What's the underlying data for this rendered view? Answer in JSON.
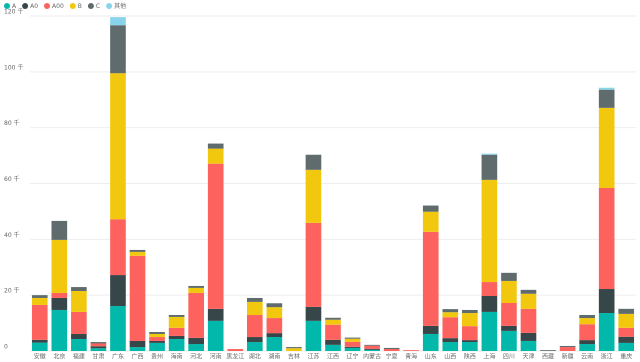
{
  "chart_data": {
    "type": "stacked_bar",
    "categories": [
      "安徽",
      "北京",
      "福建",
      "甘肃",
      "广东",
      "广西",
      "贵州",
      "海南",
      "河北",
      "河南",
      "黑龙江",
      "湖北",
      "湖南",
      "吉林",
      "江苏",
      "江西",
      "辽宁",
      "内蒙古",
      "宁夏",
      "青海",
      "山东",
      "山西",
      "陕西",
      "上海",
      "四川",
      "天津",
      "西藏",
      "新疆",
      "云南",
      "浙江",
      "重庆"
    ],
    "series": [
      {
        "name": "A",
        "color": "#01b8aa",
        "values": [
          3,
          14.7,
          4.3,
          1,
          16.1,
          1.4,
          2.9,
          4.3,
          2.5,
          10.8,
          0,
          3.2,
          5,
          0,
          10.8,
          2.2,
          1.1,
          0.4,
          0,
          0,
          6.1,
          3.2,
          3.2,
          14,
          7.2,
          3.6,
          0,
          0,
          2.5,
          13.6,
          2.9
        ]
      },
      {
        "name": "A0",
        "color": "#374649",
        "values": [
          1,
          4.3,
          1.8,
          0.7,
          11.1,
          2.2,
          0.7,
          1.1,
          2.2,
          4.3,
          0,
          1.8,
          1.4,
          0,
          5,
          1.8,
          0.4,
          0.4,
          0,
          0,
          2.9,
          1.4,
          0.7,
          5.7,
          1.8,
          2.9,
          0,
          0,
          1.4,
          8.6,
          2.2
        ]
      },
      {
        "name": "A00",
        "color": "#fd625e",
        "values": [
          12.5,
          1.8,
          7.9,
          1,
          20,
          30.5,
          1.4,
          2.9,
          16.1,
          52,
          0.7,
          7.9,
          5.4,
          0,
          30.1,
          5.4,
          1.8,
          1.1,
          0.7,
          0.3,
          33.7,
          7.5,
          5,
          5,
          8.2,
          8.6,
          0,
          1.4,
          5.7,
          36.2,
          3.2
        ]
      },
      {
        "name": "B",
        "color": "#f2c80f",
        "values": [
          2.5,
          19,
          7.5,
          0,
          52.3,
          1.4,
          1.1,
          3.9,
          1.8,
          5.4,
          0,
          4.7,
          3.9,
          1,
          19,
          1.8,
          1.1,
          0,
          0,
          0,
          7.2,
          1.8,
          4.7,
          36.6,
          7.9,
          5.4,
          0,
          0,
          2.2,
          28.7,
          5
        ]
      },
      {
        "name": "C",
        "color": "#5f6b6d",
        "values": [
          1,
          6.8,
          1.4,
          0.5,
          17.2,
          0.7,
          0.7,
          0.7,
          0.7,
          1.8,
          0,
          1.4,
          1.4,
          0.4,
          5.4,
          0.7,
          0.4,
          0.3,
          0.4,
          0,
          2.2,
          1.1,
          1.1,
          9,
          2.9,
          1.4,
          0.3,
          0.4,
          1.1,
          6.5,
          1.8
        ]
      },
      {
        "name": "其他",
        "color": "#8ad4eb",
        "values": [
          0,
          0,
          0,
          0,
          2.9,
          0,
          0,
          0,
          0,
          0,
          0,
          0,
          0,
          0,
          0,
          0,
          0,
          0,
          0,
          0,
          0,
          0,
          0,
          0.4,
          0,
          0,
          0,
          0,
          0,
          0.7,
          0
        ]
      }
    ],
    "ylim": [
      0,
      120
    ],
    "yticks": [
      0,
      {
        "value": 20,
        "label": "20 千"
      },
      {
        "value": 40,
        "label": "40 千"
      },
      {
        "value": 60,
        "label": "60 千"
      },
      {
        "value": 80,
        "label": "80 千"
      },
      {
        "value": 100,
        "label": "100 千"
      },
      {
        "value": 120,
        "label": "120 千"
      }
    ],
    "grid": true
  }
}
